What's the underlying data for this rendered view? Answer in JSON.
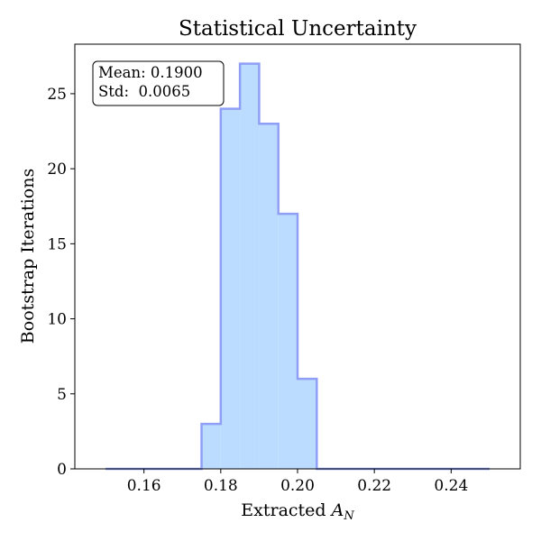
{
  "chart_data": {
    "type": "histogram",
    "title": "Statistical Uncertainty",
    "xlabel_base": "Extracted ",
    "xlabel_math": "A",
    "xlabel_sub": "N",
    "ylabel": "Bootstrap Iterations",
    "xlim": [
      0.142,
      0.258
    ],
    "ylim": [
      0,
      28.3
    ],
    "xticks": [
      0.16,
      0.18,
      0.2,
      0.22,
      0.24
    ],
    "xtick_labels": [
      "0.16",
      "0.18",
      "0.20",
      "0.22",
      "0.24"
    ],
    "yticks": [
      0,
      5,
      10,
      15,
      20,
      25
    ],
    "ytick_labels": [
      "0",
      "5",
      "10",
      "15",
      "20",
      "25"
    ],
    "bins": [
      {
        "x0": 0.15,
        "x1": 0.155,
        "count": 0
      },
      {
        "x0": 0.155,
        "x1": 0.16,
        "count": 0
      },
      {
        "x0": 0.16,
        "x1": 0.165,
        "count": 0
      },
      {
        "x0": 0.165,
        "x1": 0.17,
        "count": 0
      },
      {
        "x0": 0.17,
        "x1": 0.175,
        "count": 0
      },
      {
        "x0": 0.175,
        "x1": 0.18,
        "count": 3
      },
      {
        "x0": 0.18,
        "x1": 0.185,
        "count": 24
      },
      {
        "x0": 0.185,
        "x1": 0.19,
        "count": 27
      },
      {
        "x0": 0.19,
        "x1": 0.195,
        "count": 23
      },
      {
        "x0": 0.195,
        "x1": 0.2,
        "count": 17
      },
      {
        "x0": 0.2,
        "x1": 0.205,
        "count": 6
      },
      {
        "x0": 0.205,
        "x1": 0.21,
        "count": 0
      },
      {
        "x0": 0.21,
        "x1": 0.215,
        "count": 0
      },
      {
        "x0": 0.215,
        "x1": 0.22,
        "count": 0
      },
      {
        "x0": 0.22,
        "x1": 0.225,
        "count": 0
      },
      {
        "x0": 0.225,
        "x1": 0.23,
        "count": 0
      },
      {
        "x0": 0.23,
        "x1": 0.235,
        "count": 0
      },
      {
        "x0": 0.235,
        "x1": 0.24,
        "count": 0
      },
      {
        "x0": 0.24,
        "x1": 0.245,
        "count": 0
      },
      {
        "x0": 0.245,
        "x1": 0.25,
        "count": 0
      }
    ],
    "stats": {
      "mean_line": "Mean: 0.1900",
      "std_line": "Std:  0.0065"
    },
    "fill_color": "#bcdcff",
    "edge_color": "#8f9ff5",
    "grid": false,
    "legend": "none"
  }
}
